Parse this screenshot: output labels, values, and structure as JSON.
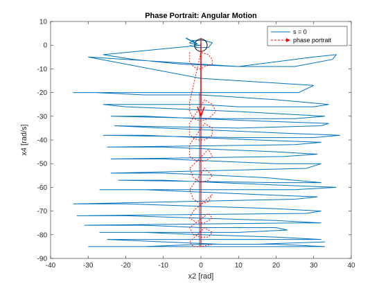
{
  "chart_data": {
    "type": "line",
    "title": "Phase Portrait: Angular Motion",
    "xlabel": "x2 [rad]",
    "ylabel": "x4 [rad/s]",
    "xlim": [
      -40,
      40
    ],
    "ylim": [
      -90,
      10
    ],
    "xticks": [
      -40,
      -30,
      -20,
      -10,
      0,
      10,
      20,
      30,
      40
    ],
    "yticks": [
      -90,
      -80,
      -70,
      -60,
      -50,
      -40,
      -30,
      -20,
      -10,
      0,
      10
    ],
    "grid": false,
    "legend_position": "top-right",
    "colors": {
      "trajectory": "#0072BD",
      "portrait": "#FF0000",
      "axes": "#262626"
    },
    "series": [
      {
        "name": "s = 0",
        "style": "solid",
        "x": [
          -3,
          -1,
          2,
          3,
          1,
          -2,
          -3,
          -1,
          0,
          -26,
          -18,
          -5,
          10,
          25,
          35,
          36,
          30,
          10,
          0,
          -10,
          -20,
          -30,
          0,
          20,
          30,
          26,
          -34,
          -28,
          -15,
          0,
          10,
          20,
          34,
          30,
          10,
          0,
          -26,
          -20,
          -5,
          10,
          33,
          25,
          5,
          -24,
          -15,
          0,
          15,
          34,
          32,
          10,
          -23,
          -10,
          5,
          20,
          37,
          30,
          10,
          -26,
          -15,
          0,
          15,
          32,
          25,
          -25,
          -10,
          5,
          20,
          31,
          22,
          -24,
          -10,
          5,
          20,
          32,
          28,
          -24,
          -10,
          5,
          18,
          32,
          20,
          -22,
          -10,
          5,
          20,
          36,
          25,
          -27,
          -15,
          0,
          15,
          31,
          25,
          -34,
          -20,
          0,
          20,
          32,
          28,
          -33,
          -20,
          0,
          20,
          32,
          25,
          -31,
          -15,
          0,
          20,
          23,
          10,
          -27,
          -15,
          0,
          20,
          32,
          28,
          -25,
          -10,
          5,
          20,
          33,
          25,
          -30,
          -15,
          0,
          15,
          33
        ],
        "y": [
          0,
          -1,
          -1,
          1,
          2,
          2,
          1,
          0,
          0,
          -4,
          -6,
          -8,
          -9,
          -9,
          -6,
          -4,
          -5,
          -9,
          -8,
          -7,
          -6,
          -5,
          -14,
          -16,
          -17,
          -20,
          -20,
          -20,
          -21,
          -21,
          -22,
          -23,
          -25,
          -26,
          -26,
          -25,
          -25,
          -26,
          -27,
          -28,
          -30,
          -31,
          -31,
          -30,
          -30,
          -31,
          -32,
          -33,
          -34,
          -35,
          -34,
          -35,
          -36,
          -37,
          -38,
          -39,
          -39,
          -38,
          -38,
          -39,
          -40,
          -41,
          -42,
          -43,
          -43,
          -44,
          -45,
          -46,
          -47,
          -48,
          -48,
          -49,
          -50,
          -50,
          -52,
          -54,
          -54,
          -55,
          -56,
          -58,
          -58,
          -57,
          -57,
          -58,
          -59,
          -60,
          -61,
          -61,
          -61,
          -62,
          -63,
          -64,
          -65,
          -67,
          -67,
          -68,
          -69,
          -70,
          -71,
          -72,
          -72,
          -73,
          -74,
          -75,
          -75,
          -76,
          -76,
          -77,
          -77,
          -78,
          -79,
          -79,
          -79,
          -80,
          -81,
          -82,
          -82,
          -82,
          -83,
          -84,
          -84,
          -85,
          -85,
          -85,
          -85,
          -84,
          -84,
          -83
        ]
      },
      {
        "name": "phase portrait",
        "style": "dashed-arrows",
        "x": [
          -3,
          -3,
          -2,
          -1,
          0,
          1,
          3,
          3,
          2,
          0,
          -3,
          -3,
          -2,
          0,
          2,
          4,
          3,
          1,
          -3,
          -3,
          -1,
          1,
          3,
          3,
          1,
          -3,
          -3,
          -1,
          1,
          3,
          2,
          -3,
          -2,
          0,
          2,
          3,
          1,
          -3,
          -2,
          0,
          2,
          3,
          -2,
          -3,
          -1,
          1,
          3,
          2,
          -3,
          -2,
          0,
          2,
          3,
          1,
          -3,
          -2,
          0,
          3
        ],
        "y": [
          -3,
          -7,
          -9,
          -10,
          -10,
          -9,
          -8,
          -6,
          -4,
          -3,
          -24,
          -28,
          -31,
          -32,
          -31,
          -28,
          -25,
          -23,
          -33,
          -38,
          -40,
          -40,
          -38,
          -35,
          -33,
          -42,
          -47,
          -49,
          -49,
          -47,
          -44,
          -52,
          -56,
          -58,
          -57,
          -55,
          -52,
          -61,
          -65,
          -67,
          -66,
          -63,
          -70,
          -73,
          -75,
          -75,
          -73,
          -71,
          -77,
          -80,
          -81,
          -81,
          -79,
          -77,
          -83,
          -85,
          -85,
          -84
        ]
      }
    ],
    "annotations": [
      "equilibrium circle at origin",
      "vertical red arrow along x2 = 0",
      "blue arrow pointing toward origin"
    ]
  }
}
